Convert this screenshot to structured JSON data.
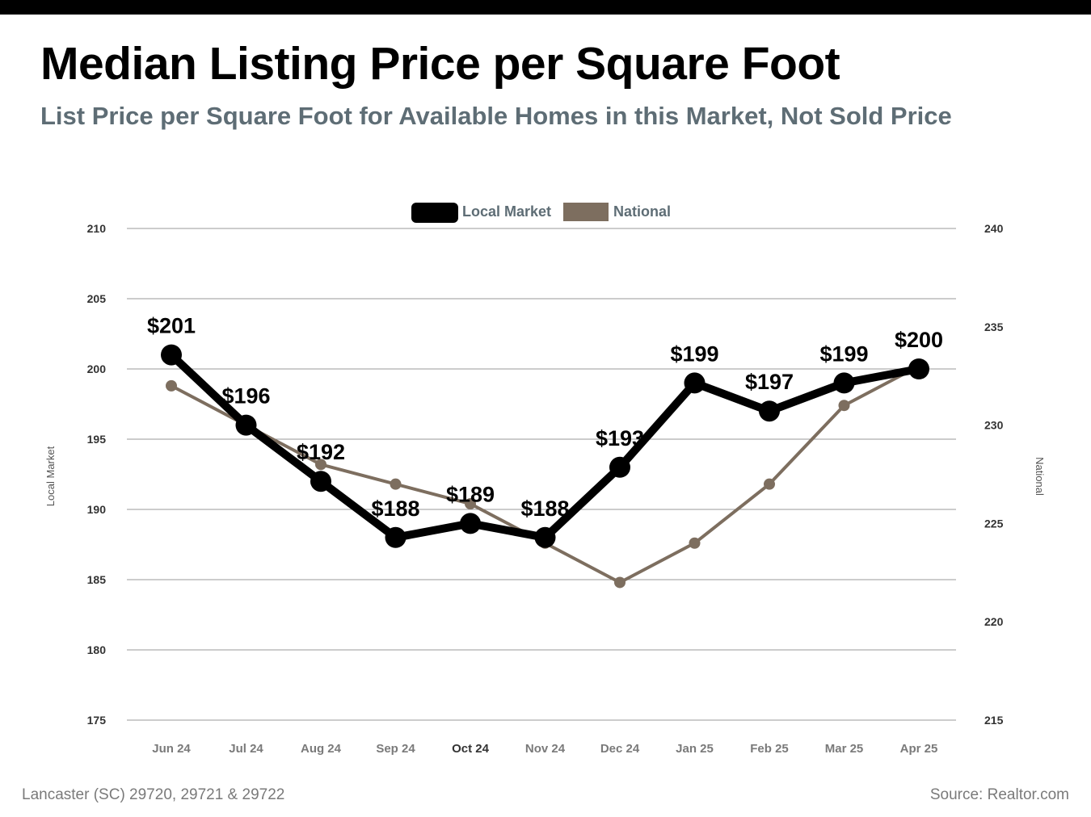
{
  "header": {
    "title": "Median Listing Price per Square Foot",
    "subtitle": "List Price per Square Foot for Available Homes in this Market, Not Sold Price"
  },
  "footer": {
    "location": "Lancaster (SC) 29720, 29721 & 29722",
    "source": "Source: Realtor.com"
  },
  "colors": {
    "local": "#000000",
    "national": "#7d6e5f",
    "grid": "#9a9a9a",
    "subtitle": "#5e6d75"
  },
  "chart_data": {
    "type": "line",
    "categories": [
      "Jun 24",
      "Jul 24",
      "Aug 24",
      "Sep 24",
      "Oct 24",
      "Nov 24",
      "Dec 24",
      "Jan 25",
      "Feb 25",
      "Mar 25",
      "Apr 25"
    ],
    "series": [
      {
        "name": "Local Market",
        "axis": "left",
        "values": [
          201,
          196,
          192,
          188,
          189,
          188,
          193,
          199,
          197,
          199,
          200
        ],
        "data_labels": [
          "$201",
          "$196",
          "$192",
          "$188",
          "$189",
          "$188",
          "$193",
          "$199",
          "$197",
          "$199",
          "$200"
        ]
      },
      {
        "name": "National",
        "axis": "right",
        "values": [
          232,
          230,
          228,
          227,
          226,
          224,
          222,
          224,
          227,
          231,
          233
        ]
      }
    ],
    "y_left": {
      "label": "Local Market",
      "range": [
        175,
        210
      ],
      "ticks": [
        "175",
        "180",
        "185",
        "190",
        "195",
        "200",
        "205",
        "210"
      ]
    },
    "y_right": {
      "label": "National",
      "range": [
        215,
        240
      ],
      "ticks": [
        "215",
        "220",
        "225",
        "230",
        "235",
        "240"
      ]
    },
    "grid": true,
    "legend_position": "top-center"
  }
}
